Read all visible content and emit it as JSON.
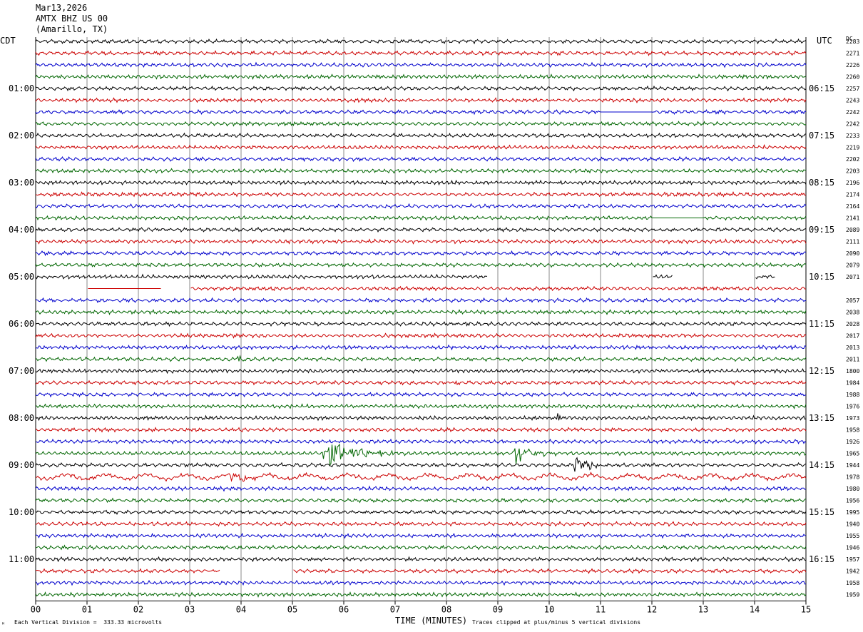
{
  "header": {
    "date": "Mar13,2026",
    "station": "AMTX BHZ US 00",
    "location": "(Amarillo, TX)"
  },
  "left_zone": "CDT",
  "right_zone": "UTC",
  "dc_label": "DC",
  "footer": {
    "scale_note": "Each Vertical Division =  333.33 microvolts",
    "clip_note": "Traces clipped at plus/minus 5 vertical divisions",
    "corner_mark": "ᴹ"
  },
  "colors": {
    "cycle": [
      "#000000",
      "#cc0000",
      "#0000cc",
      "#006600"
    ],
    "grid": "#888888"
  },
  "chart_data": {
    "type": "line",
    "xlabel": "TIME (MINUTES)",
    "x_ticks": [
      "00",
      "01",
      "02",
      "03",
      "04",
      "05",
      "06",
      "07",
      "08",
      "09",
      "10",
      "11",
      "12",
      "13",
      "14",
      "15"
    ],
    "xlim": [
      0,
      15
    ],
    "rows": 48,
    "left_hour_labels": [
      "01:00",
      "02:00",
      "03:00",
      "04:00",
      "05:00",
      "06:00",
      "07:00",
      "08:00",
      "09:00",
      "10:00",
      "11:00"
    ],
    "right_hour_labels": [
      "06:15",
      "07:15",
      "08:15",
      "09:15",
      "10:15",
      "11:15",
      "12:15",
      "13:15",
      "14:15",
      "15:15",
      "16:15"
    ],
    "dc_offsets": [
      "2283",
      "2271",
      "2226",
      "2260",
      "2257",
      "2243",
      "2242",
      "2242",
      "2233",
      "2219",
      "2202",
      "2203",
      "2196",
      "2174",
      "2164",
      "2141",
      "2089",
      "2111",
      "2090",
      "2079",
      "2071",
      "",
      "2057",
      "2038",
      "2028",
      "2017",
      "2013",
      "2011",
      "1800",
      "1984",
      "1988",
      "1976",
      "1973",
      "1958",
      "1926",
      "1965",
      "1944",
      "1978",
      "1980",
      "1956",
      "1995",
      "1940",
      "1955",
      "1946",
      "1957",
      "1942",
      "1958",
      "1959"
    ],
    "gaps": [
      {
        "row": 20,
        "from": 8.8,
        "to": 12.0
      },
      {
        "row": 20,
        "from": 12.4,
        "to": 14.0
      },
      {
        "row": 20,
        "from": 14.4,
        "to": 15.0
      },
      {
        "row": 21,
        "from": 0.0,
        "to": 1.0
      },
      {
        "row": 21,
        "from": 2.45,
        "to": 3.0
      },
      {
        "row": 45,
        "from": 3.6,
        "to": 5.0
      }
    ],
    "flat_segments": [
      {
        "row": 6,
        "from": 11.0,
        "to": 12.0
      },
      {
        "row": 15,
        "from": 12.0,
        "to": 13.0
      },
      {
        "row": 21,
        "from": 1.0,
        "to": 2.45
      }
    ],
    "events": [
      {
        "row": 27,
        "at": 3.9,
        "amp": 7,
        "width": 0.35
      },
      {
        "row": 29,
        "at": 8.1,
        "amp": 5,
        "width": 0.2
      },
      {
        "row": 30,
        "at": 10.15,
        "amp": 4,
        "width": 0.2
      },
      {
        "row": 32,
        "at": 10.15,
        "amp": 9,
        "width": 0.25
      },
      {
        "row": 35,
        "at": 5.6,
        "amp": 20,
        "width": 1.6
      },
      {
        "row": 35,
        "at": 9.3,
        "amp": 17,
        "width": 1.0
      },
      {
        "row": 36,
        "at": 10.5,
        "amp": 14,
        "width": 0.7
      },
      {
        "row": 37,
        "at": 3.8,
        "amp": 10,
        "width": 0.9
      }
    ]
  }
}
